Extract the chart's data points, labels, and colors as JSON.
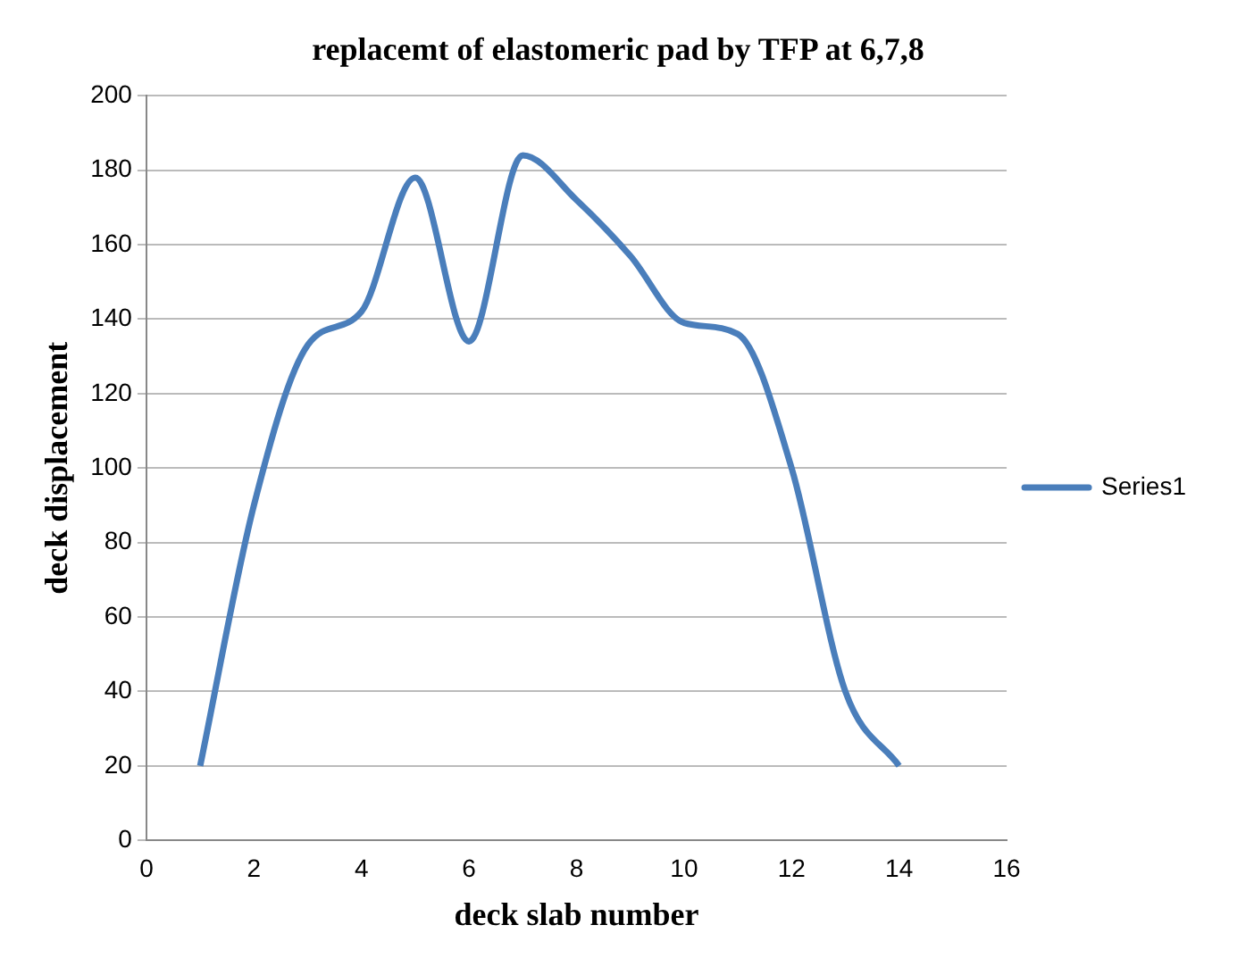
{
  "chart_data": {
    "type": "line",
    "title": "replacemt of elastomeric pad by TFP at 6,7,8",
    "xlabel": "deck slab number",
    "ylabel": "deck displacement",
    "x": [
      1,
      2,
      3,
      4,
      5,
      6,
      7,
      8,
      9,
      10,
      11,
      12,
      13,
      14
    ],
    "series": [
      {
        "name": "Series1",
        "color": "#4a7ebb",
        "values": [
          20,
          90,
          133,
          142,
          178,
          134,
          184,
          172,
          157,
          139,
          136,
          100,
          40,
          20
        ]
      }
    ],
    "xlim": [
      0,
      16
    ],
    "xticks": [
      0,
      2,
      4,
      6,
      8,
      10,
      12,
      14,
      16
    ],
    "ylim": [
      0,
      200
    ],
    "yticks": [
      0,
      20,
      40,
      60,
      80,
      100,
      120,
      140,
      160,
      180,
      200
    ],
    "grid": "y",
    "legend": "right",
    "marker": "none",
    "line_style": "solid"
  }
}
